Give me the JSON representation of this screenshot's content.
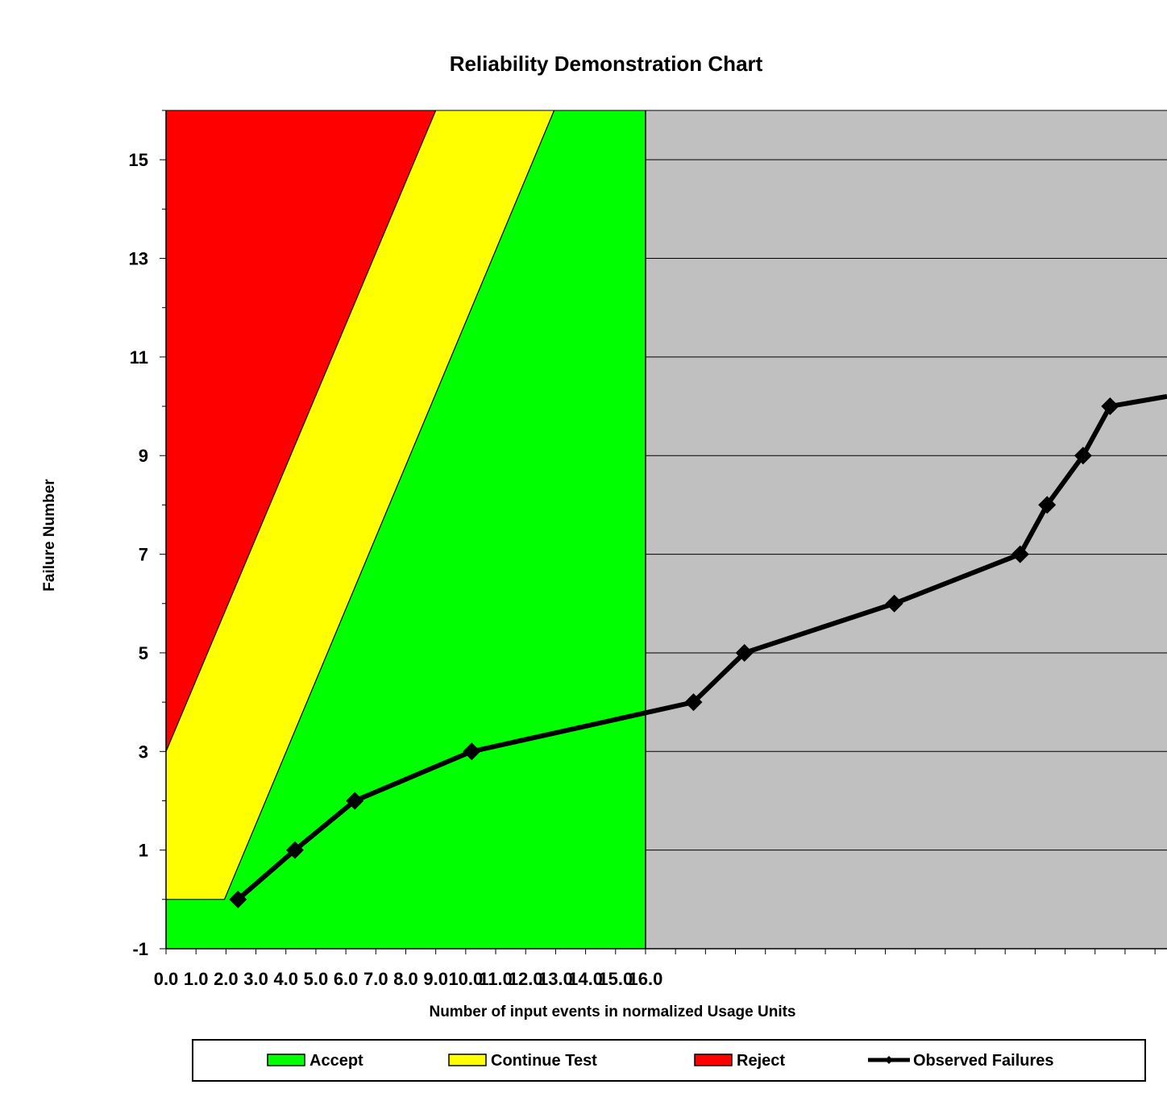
{
  "chart_data": {
    "type": "line",
    "title": "Reliability Demonstration Chart",
    "xlabel": "Number of input events in normalized Usage Units",
    "ylabel": "Failure Number",
    "xlim": [
      0,
      33.4
    ],
    "ylim": [
      -1,
      16
    ],
    "x_ticks": [
      0.0,
      1.0,
      2.0,
      3.0,
      4.0,
      5.0,
      6.0,
      7.0,
      8.0,
      9.0,
      10.0,
      11.0,
      12.0,
      13.0,
      14.0,
      15.0,
      16.0
    ],
    "x_tick_labels": [
      "0.0",
      "1.0",
      "2.0",
      "3.0",
      "4.0",
      "5.0",
      "6.0",
      "7.0",
      "8.0",
      "9.0",
      "10.0",
      "11.0",
      "12.0",
      "13.0",
      "14.0",
      "15.0",
      "16.0"
    ],
    "y_ticks": [
      -1,
      1,
      3,
      5,
      7,
      9,
      11,
      13,
      15
    ],
    "y_tick_labels": [
      "-1",
      "1",
      "3",
      "5",
      "7",
      "9",
      "11",
      "13",
      "15"
    ],
    "region_x_max": 16.0,
    "regions": {
      "reject": {
        "name": "Reject",
        "color": "#ff0000",
        "boundary": [
          [
            0,
            3
          ],
          [
            9.0,
            16
          ]
        ]
      },
      "continue": {
        "name": "Continue Test",
        "color": "#ffff00",
        "boundary": [
          [
            0,
            0
          ],
          [
            1.95,
            0
          ],
          [
            12.95,
            16
          ]
        ]
      },
      "accept": {
        "name": "Accept",
        "color": "#00ff00"
      }
    },
    "outside_color": "#c0c0c0",
    "series": [
      {
        "name": "Observed Failures",
        "color": "#000000",
        "x": [
          2.4,
          4.3,
          6.3,
          10.2,
          17.6,
          19.3,
          24.3,
          28.5,
          29.4,
          30.6,
          31.5,
          33.4
        ],
        "y": [
          0,
          1,
          2,
          3,
          4,
          5,
          6,
          7,
          8,
          9,
          10,
          10.2
        ],
        "markers": [
          true,
          true,
          true,
          true,
          true,
          true,
          true,
          true,
          true,
          true,
          true,
          false
        ]
      }
    ],
    "legend": [
      {
        "label": "Accept",
        "color": "#00ff00",
        "kind": "box"
      },
      {
        "label": "Continue Test",
        "color": "#ffff00",
        "kind": "box"
      },
      {
        "label": "Reject",
        "color": "#ff0000",
        "kind": "box"
      },
      {
        "label": "Observed Failures",
        "color": "#000000",
        "kind": "line"
      }
    ],
    "legend_position": "bottom"
  }
}
